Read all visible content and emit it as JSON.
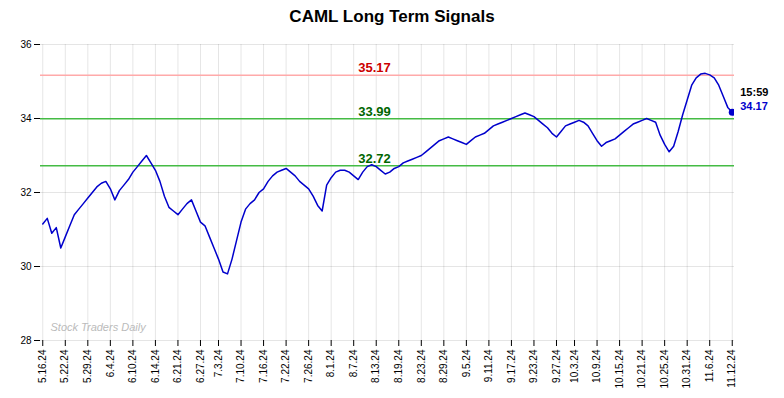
{
  "chart_data": {
    "type": "line",
    "title": "CAML Long Term Signals",
    "categories": [
      "5.16.24",
      null,
      null,
      null,
      null,
      "5.22.24",
      null,
      null,
      null,
      null,
      "5.29.24",
      null,
      null,
      null,
      null,
      "6.4.24",
      null,
      null,
      null,
      null,
      "6.10.24",
      null,
      null,
      null,
      null,
      "6.14.24",
      null,
      null,
      null,
      null,
      "6.21.24",
      null,
      null,
      null,
      null,
      "6.27.24",
      null,
      null,
      null,
      "7.3.24",
      null,
      null,
      null,
      null,
      "7.10.24",
      null,
      null,
      null,
      null,
      "7.16.24",
      null,
      null,
      null,
      null,
      "7.22.24",
      null,
      null,
      null,
      null,
      "7.26.24",
      null,
      null,
      null,
      null,
      "8.1.24",
      null,
      null,
      null,
      null,
      "8.7.24",
      null,
      null,
      null,
      null,
      "8.13.24",
      null,
      null,
      null,
      null,
      "8.19.24",
      null,
      null,
      null,
      null,
      "8.23.24",
      null,
      null,
      null,
      null,
      "8.29.24",
      null,
      null,
      null,
      null,
      "9.5.24",
      null,
      null,
      null,
      null,
      "9.11.24",
      null,
      null,
      null,
      null,
      "9.17.24",
      null,
      null,
      null,
      null,
      "9.23.24",
      null,
      null,
      null,
      null,
      "9.27.24",
      null,
      null,
      null,
      "10.3.24",
      null,
      null,
      null,
      null,
      "10.9.24",
      null,
      null,
      null,
      null,
      "10.15.24",
      null,
      null,
      null,
      null,
      "10.21.24",
      null,
      null,
      null,
      null,
      "10.25.24",
      null,
      null,
      null,
      null,
      "10.31.24",
      null,
      null,
      null,
      null,
      "11.6.24",
      null,
      null,
      null,
      null,
      "11.12.24"
    ],
    "values": [
      31.15,
      31.3,
      30.9,
      31.05,
      30.5,
      30.8,
      31.1,
      31.4,
      31.55,
      31.7,
      31.85,
      32.0,
      32.15,
      32.25,
      32.3,
      32.1,
      31.8,
      32.05,
      32.2,
      32.35,
      32.55,
      32.7,
      32.85,
      33.0,
      32.8,
      32.6,
      32.3,
      31.9,
      31.6,
      31.5,
      31.4,
      31.55,
      31.7,
      31.8,
      31.5,
      31.2,
      31.1,
      30.8,
      30.5,
      30.2,
      29.85,
      29.8,
      30.2,
      30.7,
      31.2,
      31.55,
      31.7,
      31.8,
      32.0,
      32.1,
      32.3,
      32.45,
      32.55,
      32.6,
      32.65,
      32.55,
      32.45,
      32.3,
      32.2,
      32.1,
      31.9,
      31.65,
      31.5,
      32.2,
      32.4,
      32.55,
      32.6,
      32.6,
      32.55,
      32.45,
      32.35,
      32.55,
      32.7,
      32.75,
      32.7,
      32.6,
      32.5,
      32.55,
      32.65,
      32.7,
      32.8,
      32.85,
      32.9,
      32.95,
      33.0,
      33.1,
      33.2,
      33.3,
      33.4,
      33.45,
      33.5,
      33.45,
      33.4,
      33.35,
      33.3,
      33.4,
      33.5,
      33.55,
      33.6,
      33.7,
      33.8,
      33.85,
      33.9,
      33.95,
      34.0,
      34.05,
      34.1,
      34.15,
      34.1,
      34.05,
      33.95,
      33.85,
      33.75,
      33.6,
      33.5,
      33.65,
      33.8,
      33.85,
      33.9,
      33.95,
      33.9,
      33.8,
      33.6,
      33.4,
      33.25,
      33.35,
      33.4,
      33.45,
      33.55,
      33.65,
      33.75,
      33.85,
      33.9,
      33.95,
      34.0,
      33.95,
      33.9,
      33.55,
      33.3,
      33.1,
      33.25,
      33.65,
      34.1,
      34.5,
      34.9,
      35.1,
      35.2,
      35.22,
      35.18,
      35.1,
      34.9,
      34.6,
      34.3,
      34.17
    ],
    "color": "#0000cc",
    "ylim": [
      28,
      36
    ],
    "yticks": [
      28,
      30,
      32,
      34,
      36
    ],
    "grid": true,
    "reference_lines": [
      {
        "value": 35.17,
        "label": "35.17",
        "color": "#ffaaaa",
        "label_color": "#cc0000"
      },
      {
        "value": 33.99,
        "label": "33.99",
        "color": "#44bb44",
        "label_color": "#006600"
      },
      {
        "value": 32.72,
        "label": "32.72",
        "color": "#44bb44",
        "label_color": "#006600"
      }
    ],
    "last_point": {
      "value": 34.17,
      "label": "34.17",
      "time": "15:59",
      "color": "#0000cc",
      "time_color": "#000000"
    },
    "watermark": {
      "text": "Stock Traders Daily",
      "color": "#bbbbbb"
    }
  }
}
